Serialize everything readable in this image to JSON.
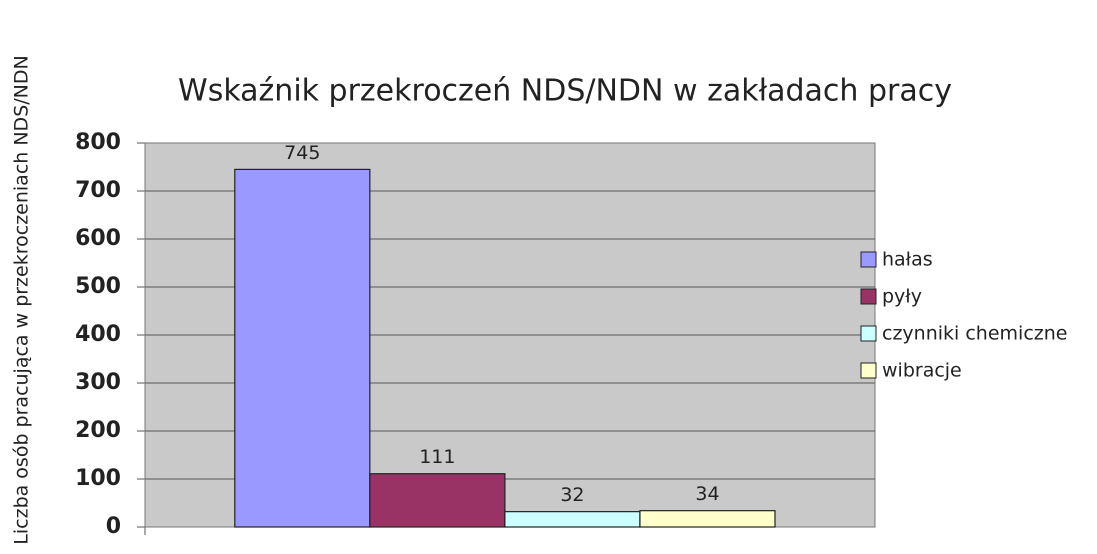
{
  "chart_data": {
    "type": "bar",
    "title": "Wskaźnik przekroczeń NDS/NDN w  zakładach pracy",
    "y_label": "Liczba osób pracująca w przekroczeniach NDS/NDN",
    "categories": [
      null
    ],
    "series": [
      {
        "name": "hałas",
        "color": "#9999ff",
        "values": [
          745
        ]
      },
      {
        "name": "pyły",
        "color": "#993366",
        "values": [
          111
        ]
      },
      {
        "name": "czynniki chemiczne",
        "color": "#ccffff",
        "values": [
          32
        ]
      },
      {
        "name": "wibracje",
        "color": "#ffffcc",
        "values": [
          34
        ]
      }
    ],
    "ylim": [
      0,
      800
    ],
    "yticks": [
      0,
      100,
      200,
      300,
      400,
      500,
      600,
      700,
      800
    ],
    "grid": true,
    "legend": "right"
  }
}
